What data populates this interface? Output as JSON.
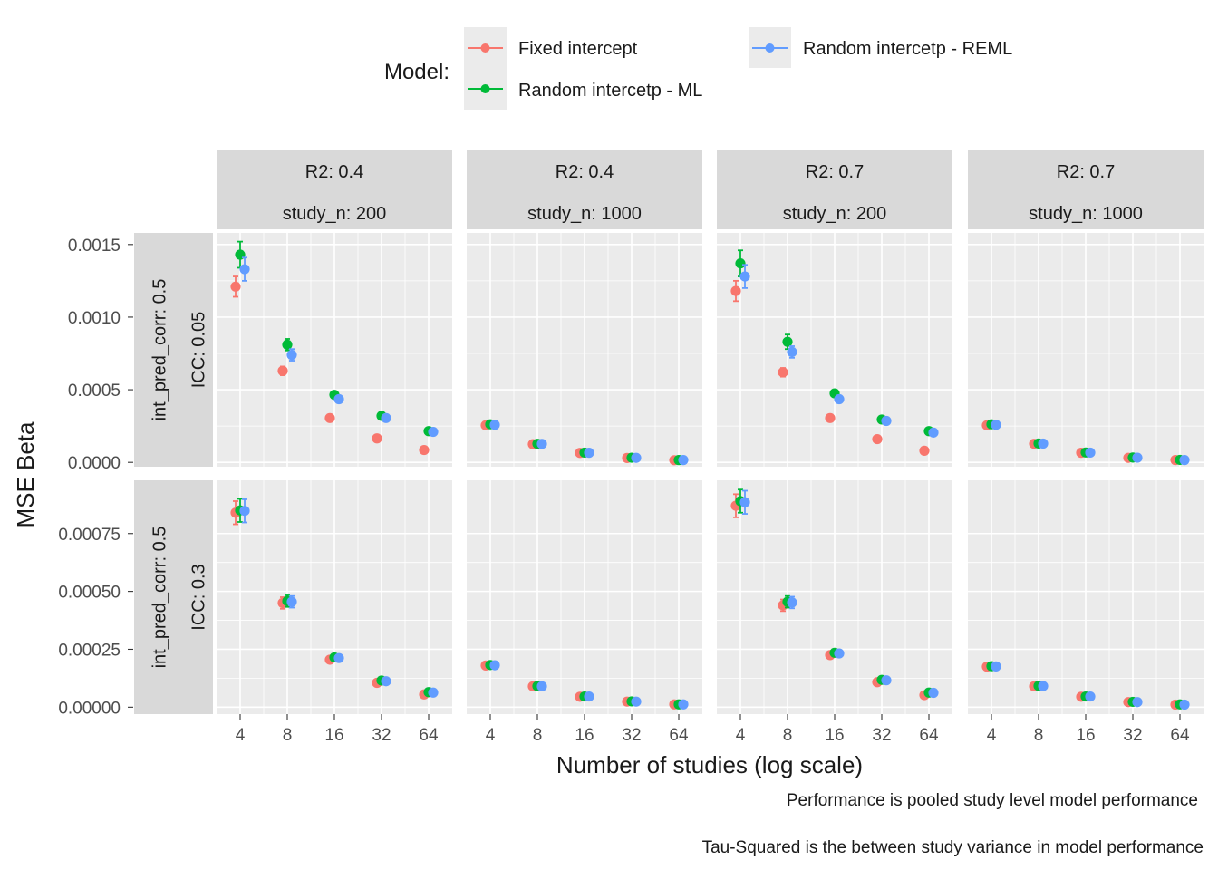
{
  "legend": {
    "title": "Model:",
    "position": "top",
    "entries": [
      {
        "name": "Fixed intercept",
        "color": "#F8766D"
      },
      {
        "name": "Random intercetp - ML",
        "color": "#00BA38"
      },
      {
        "name": "Random intercetp - REML",
        "color": "#619CFF"
      }
    ]
  },
  "captions": [
    "Performance is pooled study level model performance",
    "Tau-Squared is the between study variance in model performance"
  ],
  "chart_data": {
    "type": "scatter",
    "facet": "grid",
    "xlabel": "Number of studies (log scale)",
    "ylabel": "MSE Beta",
    "x": [
      4,
      8,
      16,
      32,
      64
    ],
    "x_tick_labels": [
      "4",
      "8",
      "16",
      "32",
      "64"
    ],
    "x_scale": "log2",
    "grid": true,
    "error_bars": true,
    "columns": [
      {
        "label1": "R2: 0.4",
        "label2": "study_n: 200"
      },
      {
        "label1": "R2: 0.4",
        "label2": "study_n: 1000"
      },
      {
        "label1": "R2: 0.7",
        "label2": "study_n: 200"
      },
      {
        "label1": "R2: 0.7",
        "label2": "study_n: 1000"
      }
    ],
    "rows": [
      {
        "label1": "int_pred_corr: 0.5",
        "label2": "ICC: 0.05",
        "ylim": [
          -3e-05,
          0.00158
        ],
        "y_ticks": [
          0,
          0.0005,
          0.001,
          0.0015
        ],
        "y_tick_labels": [
          "0.0000",
          "0.0005",
          "0.0010",
          "0.0015"
        ],
        "panels": [
          {
            "series": [
              {
                "name": "Fixed intercept",
                "values": [
                  0.00121,
                  0.00063,
                  0.000305,
                  0.000165,
                  8.5e-05
                ],
                "err": [
                  7e-05,
                  3e-05,
                  1.2e-05,
                  8e-06,
                  4e-06
                ]
              },
              {
                "name": "Random intercetp - ML",
                "values": [
                  0.00143,
                  0.00081,
                  0.000465,
                  0.00032,
                  0.000215
                ],
                "err": [
                  9e-05,
                  4e-05,
                  2e-05,
                  1e-05,
                  8e-06
                ]
              },
              {
                "name": "Random intercetp - REML",
                "values": [
                  0.00133,
                  0.00074,
                  0.000435,
                  0.000305,
                  0.00021
                ],
                "err": [
                  8e-05,
                  4e-05,
                  2e-05,
                  1e-05,
                  8e-06
                ]
              }
            ]
          },
          {
            "series": [
              {
                "name": "Fixed intercept",
                "values": [
                  0.000255,
                  0.000125,
                  6.5e-05,
                  3e-05,
                  1.5e-05
                ],
                "err": [
                  1.2e-05,
                  6e-06,
                  3e-06,
                  2e-06,
                  1e-06
                ]
              },
              {
                "name": "Random intercetp - ML",
                "values": [
                  0.000262,
                  0.000128,
                  6.7e-05,
                  3.2e-05,
                  1.6e-05
                ],
                "err": [
                  1.2e-05,
                  6e-06,
                  3e-06,
                  2e-06,
                  1e-06
                ]
              },
              {
                "name": "Random intercetp - REML",
                "values": [
                  0.000258,
                  0.000127,
                  6.6e-05,
                  3.1e-05,
                  1.6e-05
                ],
                "err": [
                  1.2e-05,
                  6e-06,
                  3e-06,
                  2e-06,
                  1e-06
                ]
              }
            ]
          },
          {
            "series": [
              {
                "name": "Fixed intercept",
                "values": [
                  0.00118,
                  0.00062,
                  0.000305,
                  0.00016,
                  8e-05
                ],
                "err": [
                  7e-05,
                  3e-05,
                  1.2e-05,
                  8e-06,
                  4e-06
                ]
              },
              {
                "name": "Random intercetp - ML",
                "values": [
                  0.00137,
                  0.00083,
                  0.000475,
                  0.000295,
                  0.000215
                ],
                "err": [
                  9e-05,
                  5e-05,
                  2e-05,
                  1e-05,
                  8e-06
                ]
              },
              {
                "name": "Random intercetp - REML",
                "values": [
                  0.00128,
                  0.00076,
                  0.000435,
                  0.000285,
                  0.000205
                ],
                "err": [
                  8e-05,
                  4e-05,
                  2e-05,
                  1e-05,
                  8e-06
                ]
              }
            ]
          },
          {
            "series": [
              {
                "name": "Fixed intercept",
                "values": [
                  0.000255,
                  0.000128,
                  6.6e-05,
                  3.1e-05,
                  1.6e-05
                ],
                "err": [
                  1.2e-05,
                  6e-06,
                  3e-06,
                  2e-06,
                  1e-06
                ]
              },
              {
                "name": "Random intercetp - ML",
                "values": [
                  0.000262,
                  0.00013,
                  6.8e-05,
                  3.3e-05,
                  1.7e-05
                ],
                "err": [
                  1.2e-05,
                  6e-06,
                  3e-06,
                  2e-06,
                  1e-06
                ]
              },
              {
                "name": "Random intercetp - REML",
                "values": [
                  0.000258,
                  0.000129,
                  6.7e-05,
                  3.2e-05,
                  1.6e-05
                ],
                "err": [
                  1.2e-05,
                  6e-06,
                  3e-06,
                  2e-06,
                  1e-06
                ]
              }
            ]
          }
        ]
      },
      {
        "label1": "int_pred_corr: 0.5",
        "label2": "ICC: 0.3",
        "ylim": [
          -3e-05,
          0.00098
        ],
        "y_ticks": [
          0,
          0.00025,
          0.0005,
          0.00075
        ],
        "y_tick_labels": [
          "0.00000",
          "0.00025",
          "0.00050",
          "0.00075"
        ],
        "panels": [
          {
            "series": [
              {
                "name": "Fixed intercept",
                "values": [
                  0.00084,
                  0.00045,
                  0.000205,
                  0.000105,
                  5.5e-05
                ],
                "err": [
                  5e-05,
                  2.5e-05,
                  1e-05,
                  5e-06,
                  3e-06
                ]
              },
              {
                "name": "Random intercetp - ML",
                "values": [
                  0.00085,
                  0.000458,
                  0.000215,
                  0.000115,
                  6.5e-05
                ],
                "err": [
                  5e-05,
                  2.5e-05,
                  1e-05,
                  5e-06,
                  3e-06
                ]
              },
              {
                "name": "Random intercetp - REML",
                "values": [
                  0.000848,
                  0.000455,
                  0.000212,
                  0.000112,
                  6.3e-05
                ],
                "err": [
                  5e-05,
                  2.5e-05,
                  1e-05,
                  5e-06,
                  3e-06
                ]
              }
            ]
          },
          {
            "series": [
              {
                "name": "Fixed intercept",
                "values": [
                  0.00018,
                  9e-05,
                  4.5e-05,
                  2.4e-05,
                  1.2e-05
                ],
                "err": [
                  8e-06,
                  4e-06,
                  2e-06,
                  1e-06,
                  1e-06
                ]
              },
              {
                "name": "Random intercetp - ML",
                "values": [
                  0.000182,
                  9.1e-05,
                  4.6e-05,
                  2.5e-05,
                  1.2e-05
                ],
                "err": [
                  8e-06,
                  4e-06,
                  2e-06,
                  1e-06,
                  1e-06
                ]
              },
              {
                "name": "Random intercetp - REML",
                "values": [
                  0.000181,
                  9e-05,
                  4.6e-05,
                  2.4e-05,
                  1.2e-05
                ],
                "err": [
                  8e-06,
                  4e-06,
                  2e-06,
                  1e-06,
                  1e-06
                ]
              }
            ]
          },
          {
            "series": [
              {
                "name": "Fixed intercept",
                "values": [
                  0.00087,
                  0.00044,
                  0.000225,
                  0.000108,
                  5.2e-05
                ],
                "err": [
                  5e-05,
                  2.5e-05,
                  1e-05,
                  5e-06,
                  3e-06
                ]
              },
              {
                "name": "Random intercetp - ML",
                "values": [
                  0.00089,
                  0.000455,
                  0.000235,
                  0.000118,
                  6.3e-05
                ],
                "err": [
                  5e-05,
                  2.5e-05,
                  1e-05,
                  5e-06,
                  3e-06
                ]
              },
              {
                "name": "Random intercetp - REML",
                "values": [
                  0.000885,
                  0.000452,
                  0.000232,
                  0.000116,
                  6.2e-05
                ],
                "err": [
                  5e-05,
                  2.5e-05,
                  1e-05,
                  5e-06,
                  3e-06
                ]
              }
            ]
          },
          {
            "series": [
              {
                "name": "Fixed intercept",
                "values": [
                  0.000175,
                  9e-05,
                  4.5e-05,
                  2.2e-05,
                  1.1e-05
                ],
                "err": [
                  8e-06,
                  4e-06,
                  2e-06,
                  1e-06,
                  1e-06
                ]
              },
              {
                "name": "Random intercetp - ML",
                "values": [
                  0.000177,
                  9.2e-05,
                  4.6e-05,
                  2.3e-05,
                  1.2e-05
                ],
                "err": [
                  8e-06,
                  4e-06,
                  2e-06,
                  1e-06,
                  1e-06
                ]
              },
              {
                "name": "Random intercetp - REML",
                "values": [
                  0.000176,
                  9.1e-05,
                  4.6e-05,
                  2.2e-05,
                  1.1e-05
                ],
                "err": [
                  8e-06,
                  4e-06,
                  2e-06,
                  1e-06,
                  1e-06
                ]
              }
            ]
          }
        ]
      }
    ]
  }
}
